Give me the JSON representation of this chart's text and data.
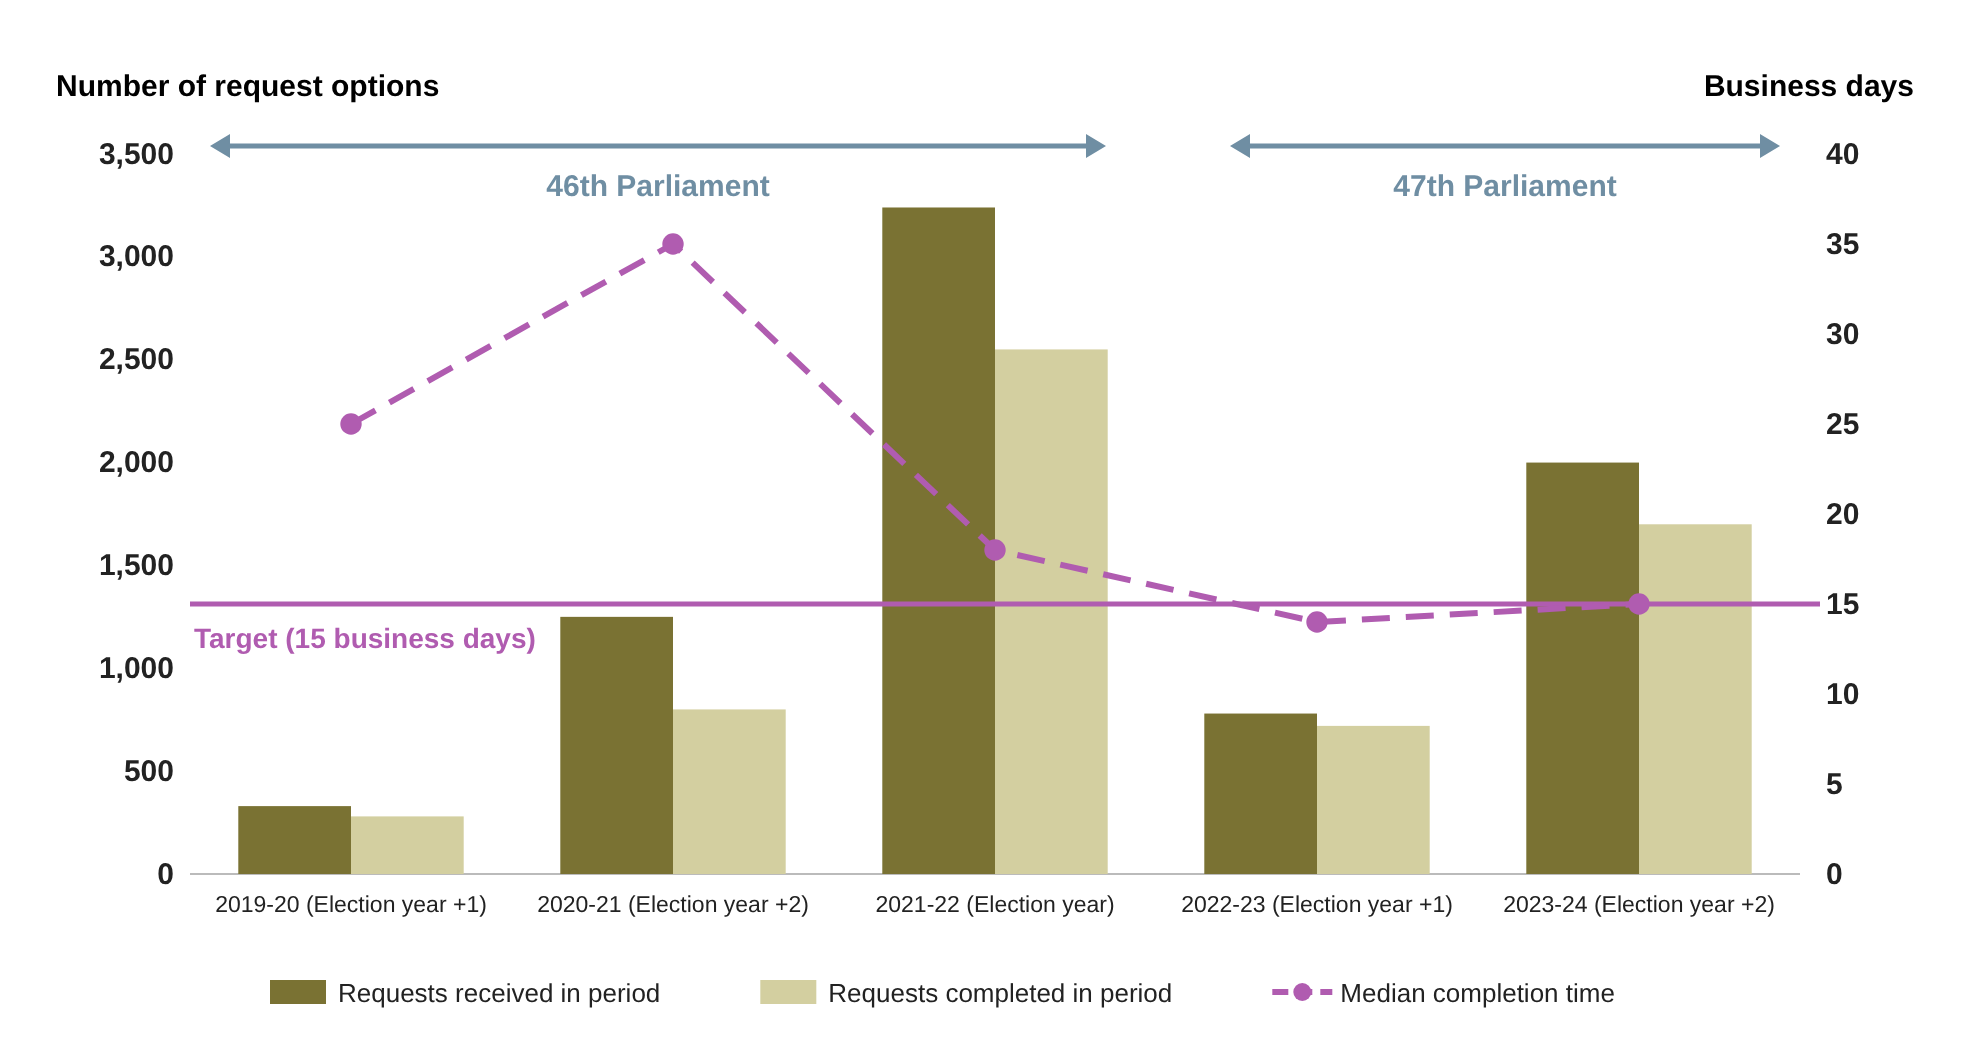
{
  "chart_data": {
    "type": "bar",
    "ylabel": "Number of request options",
    "y2label": "Business days",
    "categories": [
      "2019-20 (Election year +1)",
      "2020-21 (Election year +2)",
      "2021-22 (Election year)",
      "2022-23 (Election year +1)",
      "2023-24 (Election year +2)"
    ],
    "series": [
      {
        "name": "Requests received in period",
        "color": "#7a7233",
        "values": [
          330,
          1250,
          3240,
          780,
          2000
        ]
      },
      {
        "name": "Requests completed in period",
        "color": "#d3cfa0",
        "values": [
          280,
          800,
          2550,
          720,
          1700
        ]
      },
      {
        "name": "Median completion time",
        "type": "line",
        "axis": "y2",
        "color": "#b05cb0",
        "values": [
          25,
          35,
          18,
          14,
          15
        ],
        "line_style": "dashed",
        "marker": "circle"
      }
    ],
    "ylim": [
      0,
      3500
    ],
    "yticks": [
      0,
      {
        "value": 500,
        "label": "500"
      },
      {
        "value": 1000,
        "label": "1,000"
      },
      {
        "value": 1500,
        "label": "1,500"
      },
      {
        "value": 2000,
        "label": "2,000"
      },
      {
        "value": 2500,
        "label": "2,500"
      },
      {
        "value": 3000,
        "label": "3,000"
      },
      {
        "value": 3500,
        "label": "3,500"
      }
    ],
    "y2lim": [
      0,
      40
    ],
    "y2ticks": [
      0,
      5,
      10,
      15,
      20,
      25,
      30,
      35,
      40
    ],
    "ref_lines": [
      {
        "axis": "y2",
        "value": 15,
        "label": "Target (15 business days)",
        "color": "#b05cb0"
      }
    ],
    "annotations": [
      "46th Parliament",
      "47th Parliament"
    ],
    "legend": "bottom"
  }
}
